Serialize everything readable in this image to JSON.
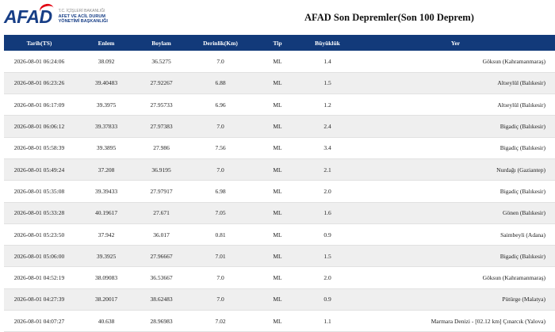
{
  "logo": {
    "word": "AFAD",
    "gov": "T.C. İÇİŞLERİ BAKANLIĞI",
    "line1": "AFET VE ACİL DURUM",
    "line2": "YÖNETİMİ BAŞKANLIĞI"
  },
  "page_title": "AFAD Son Depremler(Son 100 Deprem)",
  "table": {
    "headers": [
      "Tarih(TS)",
      "Enlem",
      "Boylam",
      "Derinlik(Km)",
      "Tip",
      "Büyüklük",
      "Yer"
    ],
    "rows": [
      [
        "2026-08-01 06:24:06",
        "38.092",
        "36.5275",
        "7.0",
        "ML",
        "1.4",
        "Göksun (Kahramanmaraş)"
      ],
      [
        "2026-08-01 06:23:26",
        "39.40483",
        "27.92267",
        "6.88",
        "ML",
        "1.5",
        "Altıeylül (Balıkesir)"
      ],
      [
        "2026-08-01 06:17:09",
        "39.3975",
        "27.95733",
        "6.96",
        "ML",
        "1.2",
        "Altıeylül (Balıkesir)"
      ],
      [
        "2026-08-01 06:06:12",
        "39.37833",
        "27.97383",
        "7.0",
        "ML",
        "2.4",
        "Bigadiç (Balıkesir)"
      ],
      [
        "2026-08-01 05:58:39",
        "39.3895",
        "27.986",
        "7.56",
        "ML",
        "3.4",
        "Bigadiç (Balıkesir)"
      ],
      [
        "2026-08-01 05:49:24",
        "37.208",
        "36.9195",
        "7.0",
        "ML",
        "2.1",
        "Nurdağı (Gaziantep)"
      ],
      [
        "2026-08-01 05:35:08",
        "39.39433",
        "27.97917",
        "6.98",
        "ML",
        "2.0",
        "Bigadiç (Balıkesir)"
      ],
      [
        "2026-08-01 05:33:28",
        "40.19617",
        "27.671",
        "7.05",
        "ML",
        "1.6",
        "Gönen (Balıkesir)"
      ],
      [
        "2026-08-01 05:23:50",
        "37.942",
        "36.017",
        "0.81",
        "ML",
        "0.9",
        "Saimbeyli (Adana)"
      ],
      [
        "2026-08-01 05:06:00",
        "39.3925",
        "27.96667",
        "7.01",
        "ML",
        "1.5",
        "Bigadiç (Balıkesir)"
      ],
      [
        "2026-08-01 04:52:19",
        "38.09083",
        "36.53667",
        "7.0",
        "ML",
        "2.0",
        "Göksun (Kahramanmaraş)"
      ],
      [
        "2026-08-01 04:27:39",
        "38.20017",
        "38.62483",
        "7.0",
        "ML",
        "0.9",
        "Pütürge (Malatya)"
      ],
      [
        "2026-08-01 04:07:27",
        "40.638",
        "28.96983",
        "7.02",
        "ML",
        "1.1",
        "Marmara Denizi - [02.12 km] Çınarcık (Yalova)"
      ]
    ]
  },
  "colors": {
    "header_bg": "#123a7a",
    "brand_blue": "#173e86",
    "brand_red": "#e30613",
    "row_alt": "#efefef"
  }
}
